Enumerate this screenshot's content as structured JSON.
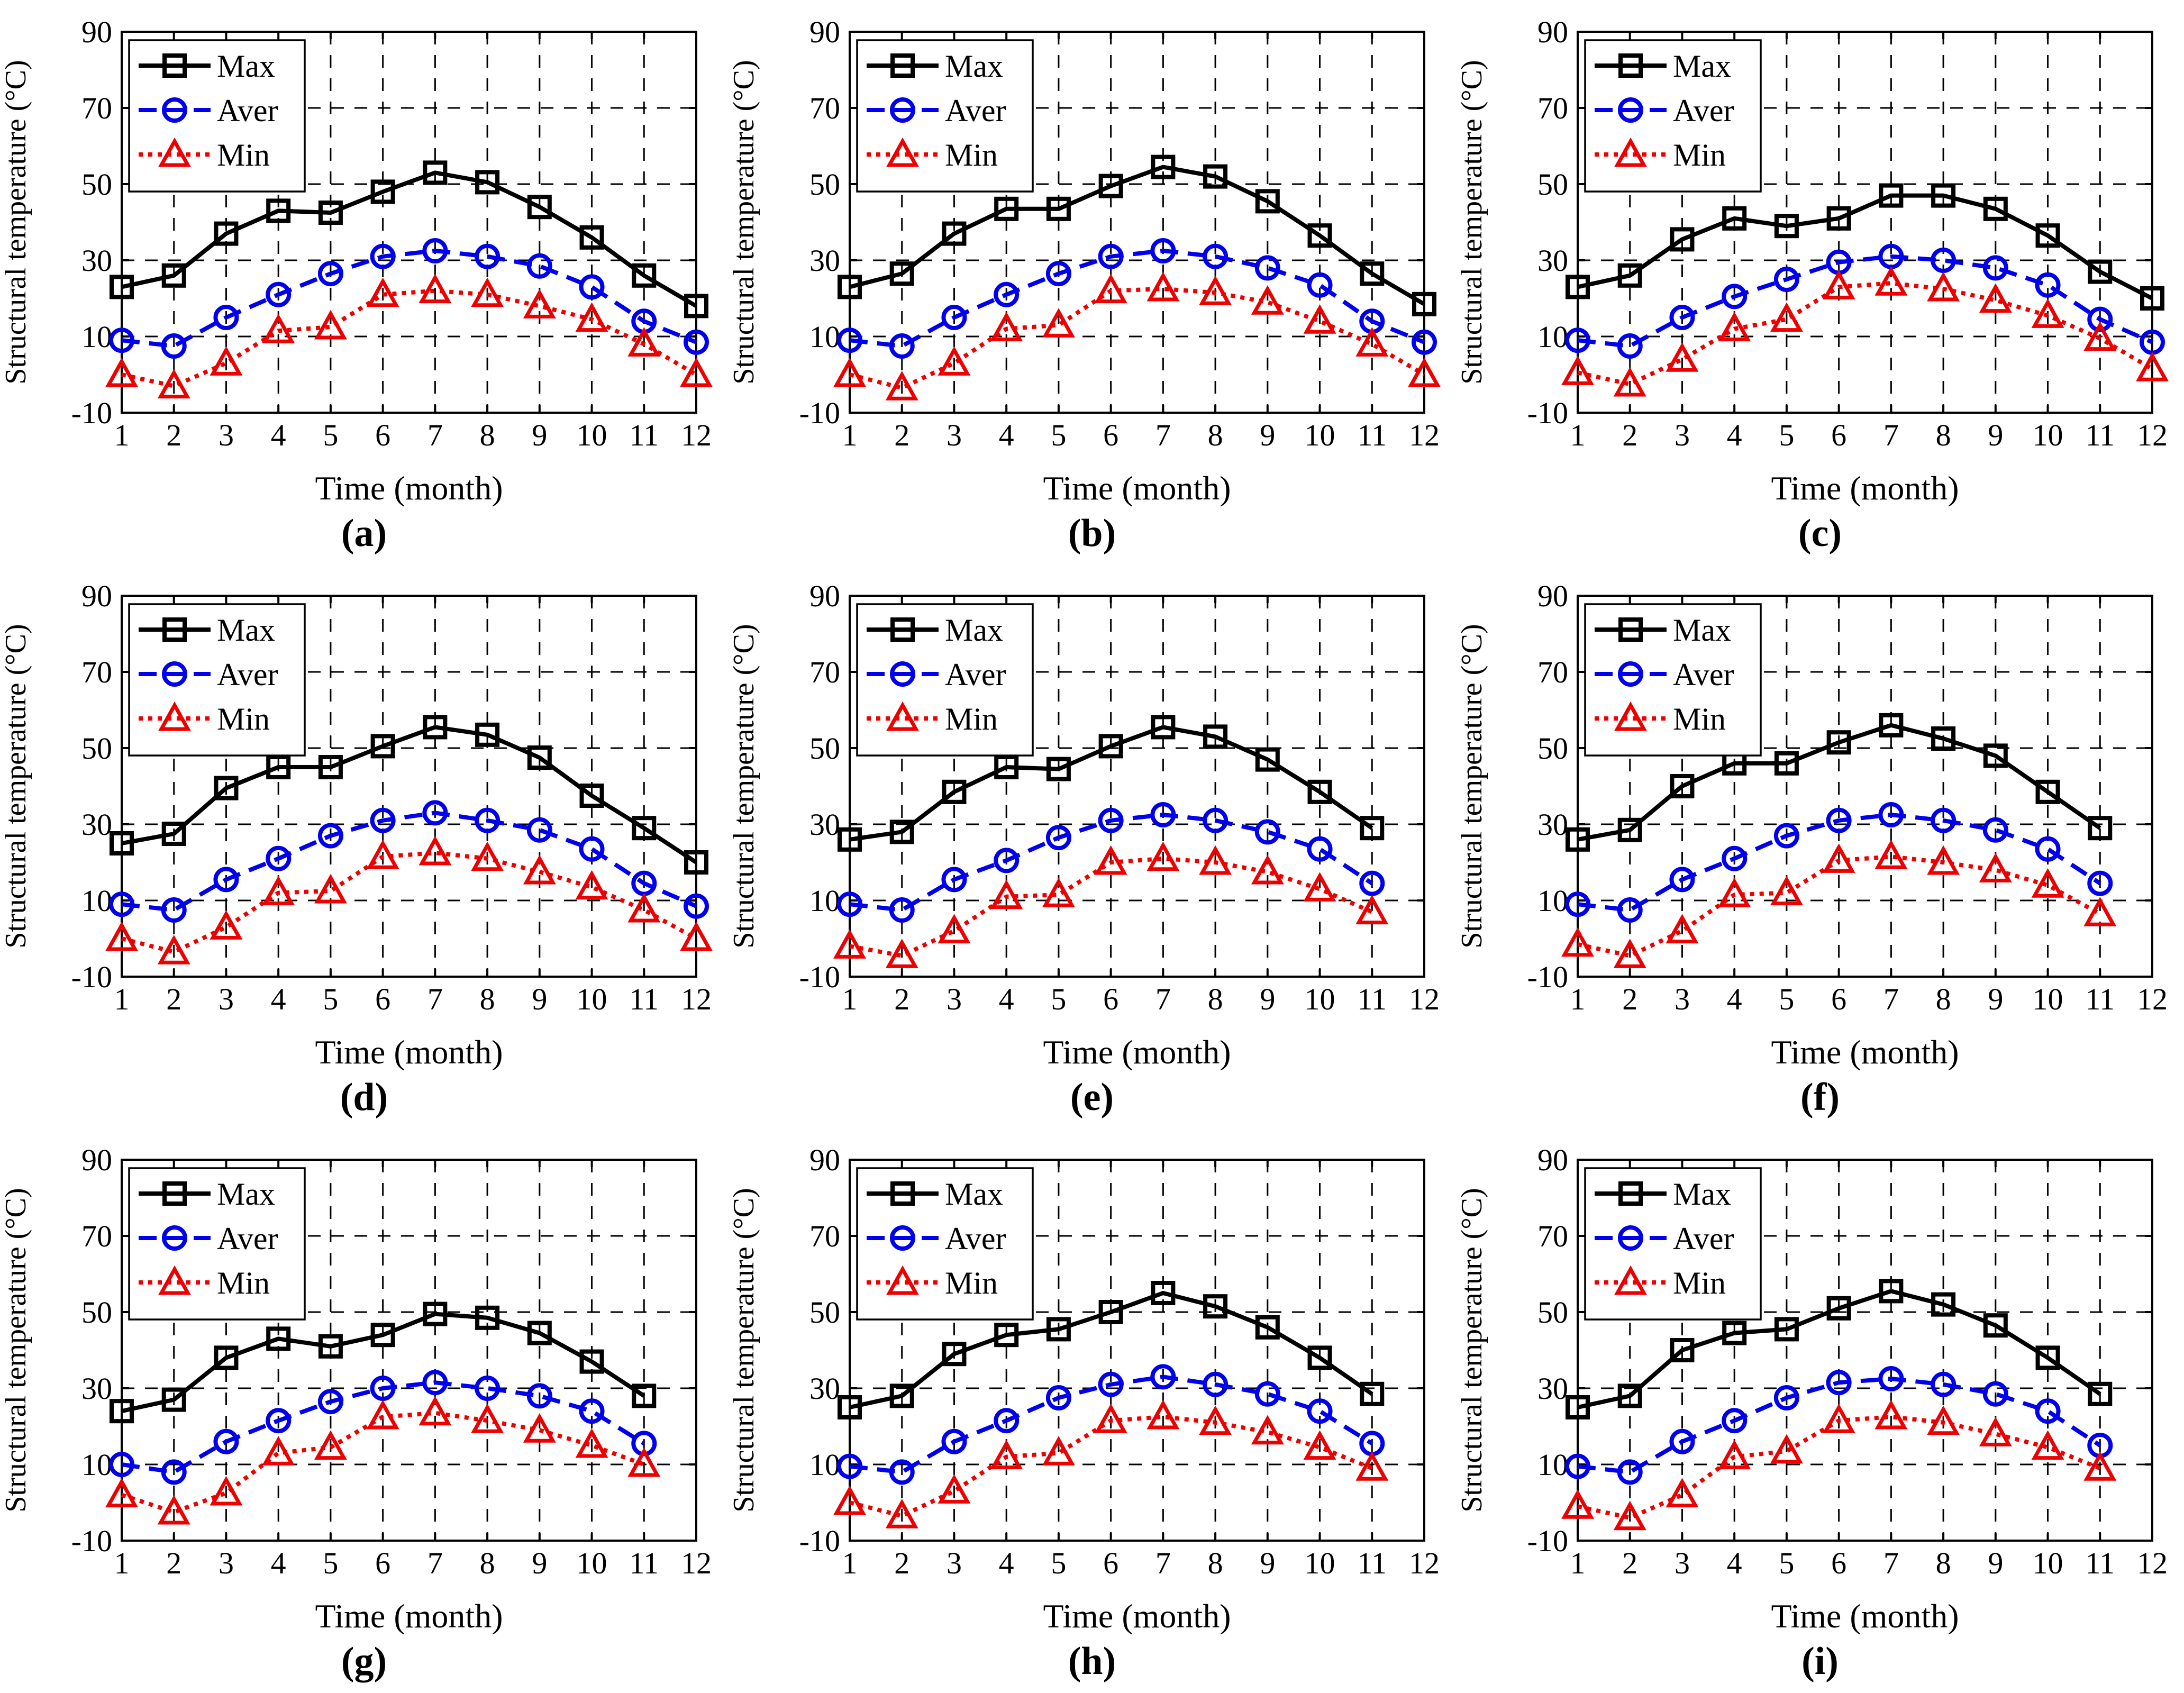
{
  "figure": {
    "ylabel": "Structural temperature (°C)",
    "xlabel": "Time (month)",
    "legend_labels": [
      "Max",
      "Aver",
      "Min"
    ],
    "colors": {
      "max": "#000000",
      "aver": "#0000ee",
      "min": "#ee0000",
      "grid": "#000000"
    }
  },
  "chart_data": [
    {
      "type": "line",
      "label": "(a)",
      "xlabel": "Time (month)",
      "ylabel": "Structural temperature (°C)",
      "xlim": [
        1,
        12
      ],
      "ylim": [
        -10,
        90
      ],
      "xticks": [
        1,
        2,
        3,
        4,
        5,
        6,
        7,
        8,
        9,
        10,
        11,
        12
      ],
      "yticks": [
        -10,
        10,
        30,
        50,
        70,
        90
      ],
      "grid": true,
      "legend_position": "top-left",
      "x": [
        1,
        2,
        3,
        4,
        5,
        6,
        7,
        8,
        9,
        10,
        11,
        12
      ],
      "series": [
        {
          "name": "Max",
          "color": "#000000",
          "style": "solid",
          "marker": "square",
          "values": [
            23,
            26,
            37,
            43,
            42.5,
            48,
            53,
            50.5,
            44,
            36,
            26,
            18
          ]
        },
        {
          "name": "Aver",
          "color": "#0000ee",
          "style": "dashed",
          "marker": "circle",
          "values": [
            9,
            7.5,
            15,
            21,
            26.5,
            31,
            32.5,
            31,
            28.5,
            23,
            14,
            8.5
          ]
        },
        {
          "name": "Min",
          "color": "#ee0000",
          "style": "dotted",
          "marker": "triangle",
          "values": [
            0,
            -3,
            3,
            11.5,
            12.5,
            21,
            22,
            21,
            18,
            14.5,
            8,
            0
          ]
        }
      ]
    },
    {
      "type": "line",
      "label": "(b)",
      "xlabel": "Time (month)",
      "ylabel": "Structural temperature (°C)",
      "xlim": [
        1,
        12
      ],
      "ylim": [
        -10,
        90
      ],
      "xticks": [
        1,
        2,
        3,
        4,
        5,
        6,
        7,
        8,
        9,
        10,
        11,
        12
      ],
      "yticks": [
        -10,
        10,
        30,
        50,
        70,
        90
      ],
      "grid": true,
      "legend_position": "top-left",
      "x": [
        1,
        2,
        3,
        4,
        5,
        6,
        7,
        8,
        9,
        10,
        11,
        12
      ],
      "series": [
        {
          "name": "Max",
          "color": "#000000",
          "style": "solid",
          "marker": "square",
          "values": [
            23,
            26.5,
            37,
            43.5,
            43.5,
            49.5,
            54.5,
            52,
            45.5,
            36.5,
            26.5,
            18.5
          ]
        },
        {
          "name": "Aver",
          "color": "#0000ee",
          "style": "dashed",
          "marker": "circle",
          "values": [
            9,
            7.5,
            15,
            21,
            26.5,
            31,
            32.5,
            31,
            28,
            23.5,
            14,
            8.5
          ]
        },
        {
          "name": "Min",
          "color": "#ee0000",
          "style": "dotted",
          "marker": "triangle",
          "values": [
            0,
            -3.5,
            3,
            12,
            13,
            22,
            22.5,
            21.5,
            19,
            14,
            8,
            0
          ]
        }
      ]
    },
    {
      "type": "line",
      "label": "(c)",
      "xlabel": "Time (month)",
      "ylabel": "Structural temperature (°C)",
      "xlim": [
        1,
        12
      ],
      "ylim": [
        -10,
        90
      ],
      "xticks": [
        1,
        2,
        3,
        4,
        5,
        6,
        7,
        8,
        9,
        10,
        11,
        12
      ],
      "yticks": [
        -10,
        10,
        30,
        50,
        70,
        90
      ],
      "grid": true,
      "legend_position": "top-left",
      "x": [
        1,
        2,
        3,
        4,
        5,
        6,
        7,
        8,
        9,
        10,
        11,
        12
      ],
      "series": [
        {
          "name": "Max",
          "color": "#000000",
          "style": "solid",
          "marker": "square",
          "values": [
            23,
            26,
            35.5,
            41,
            39,
            41,
            47,
            47,
            43.5,
            36.5,
            27,
            20
          ]
        },
        {
          "name": "Aver",
          "color": "#0000ee",
          "style": "dashed",
          "marker": "circle",
          "values": [
            9,
            7.5,
            15,
            20.5,
            25,
            29.5,
            31,
            30,
            28,
            23.5,
            14.5,
            8.5
          ]
        },
        {
          "name": "Min",
          "color": "#ee0000",
          "style": "dotted",
          "marker": "triangle",
          "values": [
            0.5,
            -2.5,
            4,
            12,
            14.5,
            23,
            24,
            22.5,
            19.5,
            15.5,
            9.5,
            1.5
          ]
        }
      ]
    },
    {
      "type": "line",
      "label": "(d)",
      "xlabel": "Time (month)",
      "ylabel": "Structural temperature (°C)",
      "xlim": [
        1,
        12
      ],
      "ylim": [
        -10,
        90
      ],
      "xticks": [
        1,
        2,
        3,
        4,
        5,
        6,
        7,
        8,
        9,
        10,
        11,
        12
      ],
      "yticks": [
        -10,
        10,
        30,
        50,
        70,
        90
      ],
      "grid": true,
      "legend_position": "top-left",
      "x": [
        1,
        2,
        3,
        4,
        5,
        6,
        7,
        8,
        9,
        10,
        11,
        12
      ],
      "series": [
        {
          "name": "Max",
          "color": "#000000",
          "style": "solid",
          "marker": "square",
          "values": [
            25,
            27.5,
            39.5,
            45,
            45,
            50.5,
            55.5,
            53.5,
            47.5,
            37.5,
            29,
            20
          ]
        },
        {
          "name": "Aver",
          "color": "#0000ee",
          "style": "dashed",
          "marker": "circle",
          "values": [
            9,
            7.5,
            15.5,
            21,
            27,
            31,
            33,
            31,
            28.5,
            23.5,
            14.5,
            8.5
          ]
        },
        {
          "name": "Min",
          "color": "#ee0000",
          "style": "dotted",
          "marker": "triangle",
          "values": [
            0,
            -3.5,
            3,
            12,
            12.5,
            21.5,
            22.5,
            21,
            17.5,
            13.5,
            7.5,
            0
          ]
        }
      ]
    },
    {
      "type": "line",
      "label": "(e)",
      "xlabel": "Time (month)",
      "ylabel": "Structural temperature (°C)",
      "xlim": [
        1,
        12
      ],
      "ylim": [
        -10,
        90
      ],
      "xticks": [
        1,
        2,
        3,
        4,
        5,
        6,
        7,
        8,
        9,
        10,
        11,
        12
      ],
      "yticks": [
        -10,
        10,
        30,
        50,
        70,
        90
      ],
      "grid": true,
      "legend_position": "top-left",
      "x": [
        1,
        2,
        3,
        4,
        5,
        6,
        7,
        8,
        9,
        10,
        11
      ],
      "series": [
        {
          "name": "Max",
          "color": "#000000",
          "style": "solid",
          "marker": "square",
          "values": [
            26,
            28,
            38.5,
            45,
            44.5,
            50.5,
            55.5,
            53,
            47,
            38.5,
            29
          ]
        },
        {
          "name": "Aver",
          "color": "#0000ee",
          "style": "dashed",
          "marker": "circle",
          "values": [
            9,
            7.5,
            15.5,
            20.5,
            26.5,
            31,
            32.5,
            31,
            28,
            23.5,
            14.5
          ]
        },
        {
          "name": "Min",
          "color": "#ee0000",
          "style": "dotted",
          "marker": "triangle",
          "values": [
            -2,
            -4.5,
            2,
            11,
            11.5,
            20,
            21,
            20,
            17.5,
            13,
            7
          ]
        }
      ]
    },
    {
      "type": "line",
      "label": "(f)",
      "xlabel": "Time (month)",
      "ylabel": "Structural temperature (°C)",
      "xlim": [
        1,
        12
      ],
      "ylim": [
        -10,
        90
      ],
      "xticks": [
        1,
        2,
        3,
        4,
        5,
        6,
        7,
        8,
        9,
        10,
        11,
        12
      ],
      "yticks": [
        -10,
        10,
        30,
        50,
        70,
        90
      ],
      "grid": true,
      "legend_position": "top-left",
      "x": [
        1,
        2,
        3,
        4,
        5,
        6,
        7,
        8,
        9,
        10,
        11
      ],
      "series": [
        {
          "name": "Max",
          "color": "#000000",
          "style": "solid",
          "marker": "square",
          "values": [
            26,
            28.5,
            40,
            46,
            46,
            51.5,
            56,
            52.5,
            48,
            38.5,
            29
          ]
        },
        {
          "name": "Aver",
          "color": "#0000ee",
          "style": "dashed",
          "marker": "circle",
          "values": [
            9,
            7.5,
            15.5,
            21,
            27,
            31,
            32.5,
            31,
            28.5,
            23.5,
            14.5
          ]
        },
        {
          "name": "Min",
          "color": "#ee0000",
          "style": "dotted",
          "marker": "triangle",
          "values": [
            -1.5,
            -4.5,
            2,
            11.5,
            12,
            20.5,
            21.5,
            20,
            18,
            14,
            6.5
          ]
        }
      ]
    },
    {
      "type": "line",
      "label": "(g)",
      "xlabel": "Time (month)",
      "ylabel": "Structural temperature (°C)",
      "xlim": [
        1,
        12
      ],
      "ylim": [
        -10,
        90
      ],
      "xticks": [
        1,
        2,
        3,
        4,
        5,
        6,
        7,
        8,
        9,
        10,
        11,
        12
      ],
      "yticks": [
        -10,
        10,
        30,
        50,
        70,
        90
      ],
      "grid": true,
      "legend_position": "top-left",
      "x": [
        1,
        2,
        3,
        4,
        5,
        6,
        7,
        8,
        9,
        10,
        11
      ],
      "series": [
        {
          "name": "Max",
          "color": "#000000",
          "style": "solid",
          "marker": "square",
          "values": [
            24,
            27,
            38,
            43,
            41,
            44,
            49.5,
            48.5,
            44.5,
            37,
            28
          ]
        },
        {
          "name": "Aver",
          "color": "#0000ee",
          "style": "dashed",
          "marker": "circle",
          "values": [
            10,
            8,
            16,
            21.5,
            26.5,
            30,
            31.5,
            30,
            28,
            24,
            15.5
          ]
        },
        {
          "name": "Min",
          "color": "#ee0000",
          "style": "dotted",
          "marker": "triangle",
          "values": [
            2,
            -2.5,
            2.5,
            13,
            14.5,
            22.5,
            23.5,
            21.5,
            19,
            15,
            10
          ]
        }
      ]
    },
    {
      "type": "line",
      "label": "(h)",
      "xlabel": "Time (month)",
      "ylabel": "Structural temperature (°C)",
      "xlim": [
        1,
        12
      ],
      "ylim": [
        -10,
        90
      ],
      "xticks": [
        1,
        2,
        3,
        4,
        5,
        6,
        7,
        8,
        9,
        10,
        11,
        12
      ],
      "yticks": [
        -10,
        10,
        30,
        50,
        70,
        90
      ],
      "grid": true,
      "legend_position": "top-left",
      "x": [
        1,
        2,
        3,
        4,
        5,
        6,
        7,
        8,
        9,
        10,
        11
      ],
      "series": [
        {
          "name": "Max",
          "color": "#000000",
          "style": "solid",
          "marker": "square",
          "values": [
            25,
            28,
            39,
            44,
            45.5,
            50,
            55,
            51.5,
            46,
            38,
            28.5
          ]
        },
        {
          "name": "Aver",
          "color": "#0000ee",
          "style": "dashed",
          "marker": "circle",
          "values": [
            9.5,
            8,
            16,
            21.5,
            27.5,
            31,
            33,
            31,
            28.5,
            24,
            15.5
          ]
        },
        {
          "name": "Min",
          "color": "#ee0000",
          "style": "dotted",
          "marker": "triangle",
          "values": [
            0,
            -3.5,
            3,
            12,
            13,
            21.5,
            22.5,
            21,
            18.5,
            14.5,
            9
          ]
        }
      ]
    },
    {
      "type": "line",
      "label": "(i)",
      "xlabel": "Time (month)",
      "ylabel": "Structural temperature (°C)",
      "xlim": [
        1,
        12
      ],
      "ylim": [
        -10,
        90
      ],
      "xticks": [
        1,
        2,
        3,
        4,
        5,
        6,
        7,
        8,
        9,
        10,
        11,
        12
      ],
      "yticks": [
        -10,
        10,
        30,
        50,
        70,
        90
      ],
      "grid": true,
      "legend_position": "top-left",
      "x": [
        1,
        2,
        3,
        4,
        5,
        6,
        7,
        8,
        9,
        10,
        11
      ],
      "series": [
        {
          "name": "Max",
          "color": "#000000",
          "style": "solid",
          "marker": "square",
          "values": [
            25,
            28,
            40,
            44.5,
            45.5,
            51,
            55.5,
            52,
            46.5,
            38,
            28.5
          ]
        },
        {
          "name": "Aver",
          "color": "#0000ee",
          "style": "dashed",
          "marker": "circle",
          "values": [
            9.5,
            8,
            16,
            21.5,
            27.5,
            31.5,
            32.5,
            31,
            28.5,
            24,
            15
          ]
        },
        {
          "name": "Min",
          "color": "#ee0000",
          "style": "dotted",
          "marker": "triangle",
          "values": [
            -1,
            -4,
            2,
            12,
            13.5,
            21.5,
            22.5,
            21,
            18,
            14.5,
            9
          ]
        }
      ]
    }
  ]
}
